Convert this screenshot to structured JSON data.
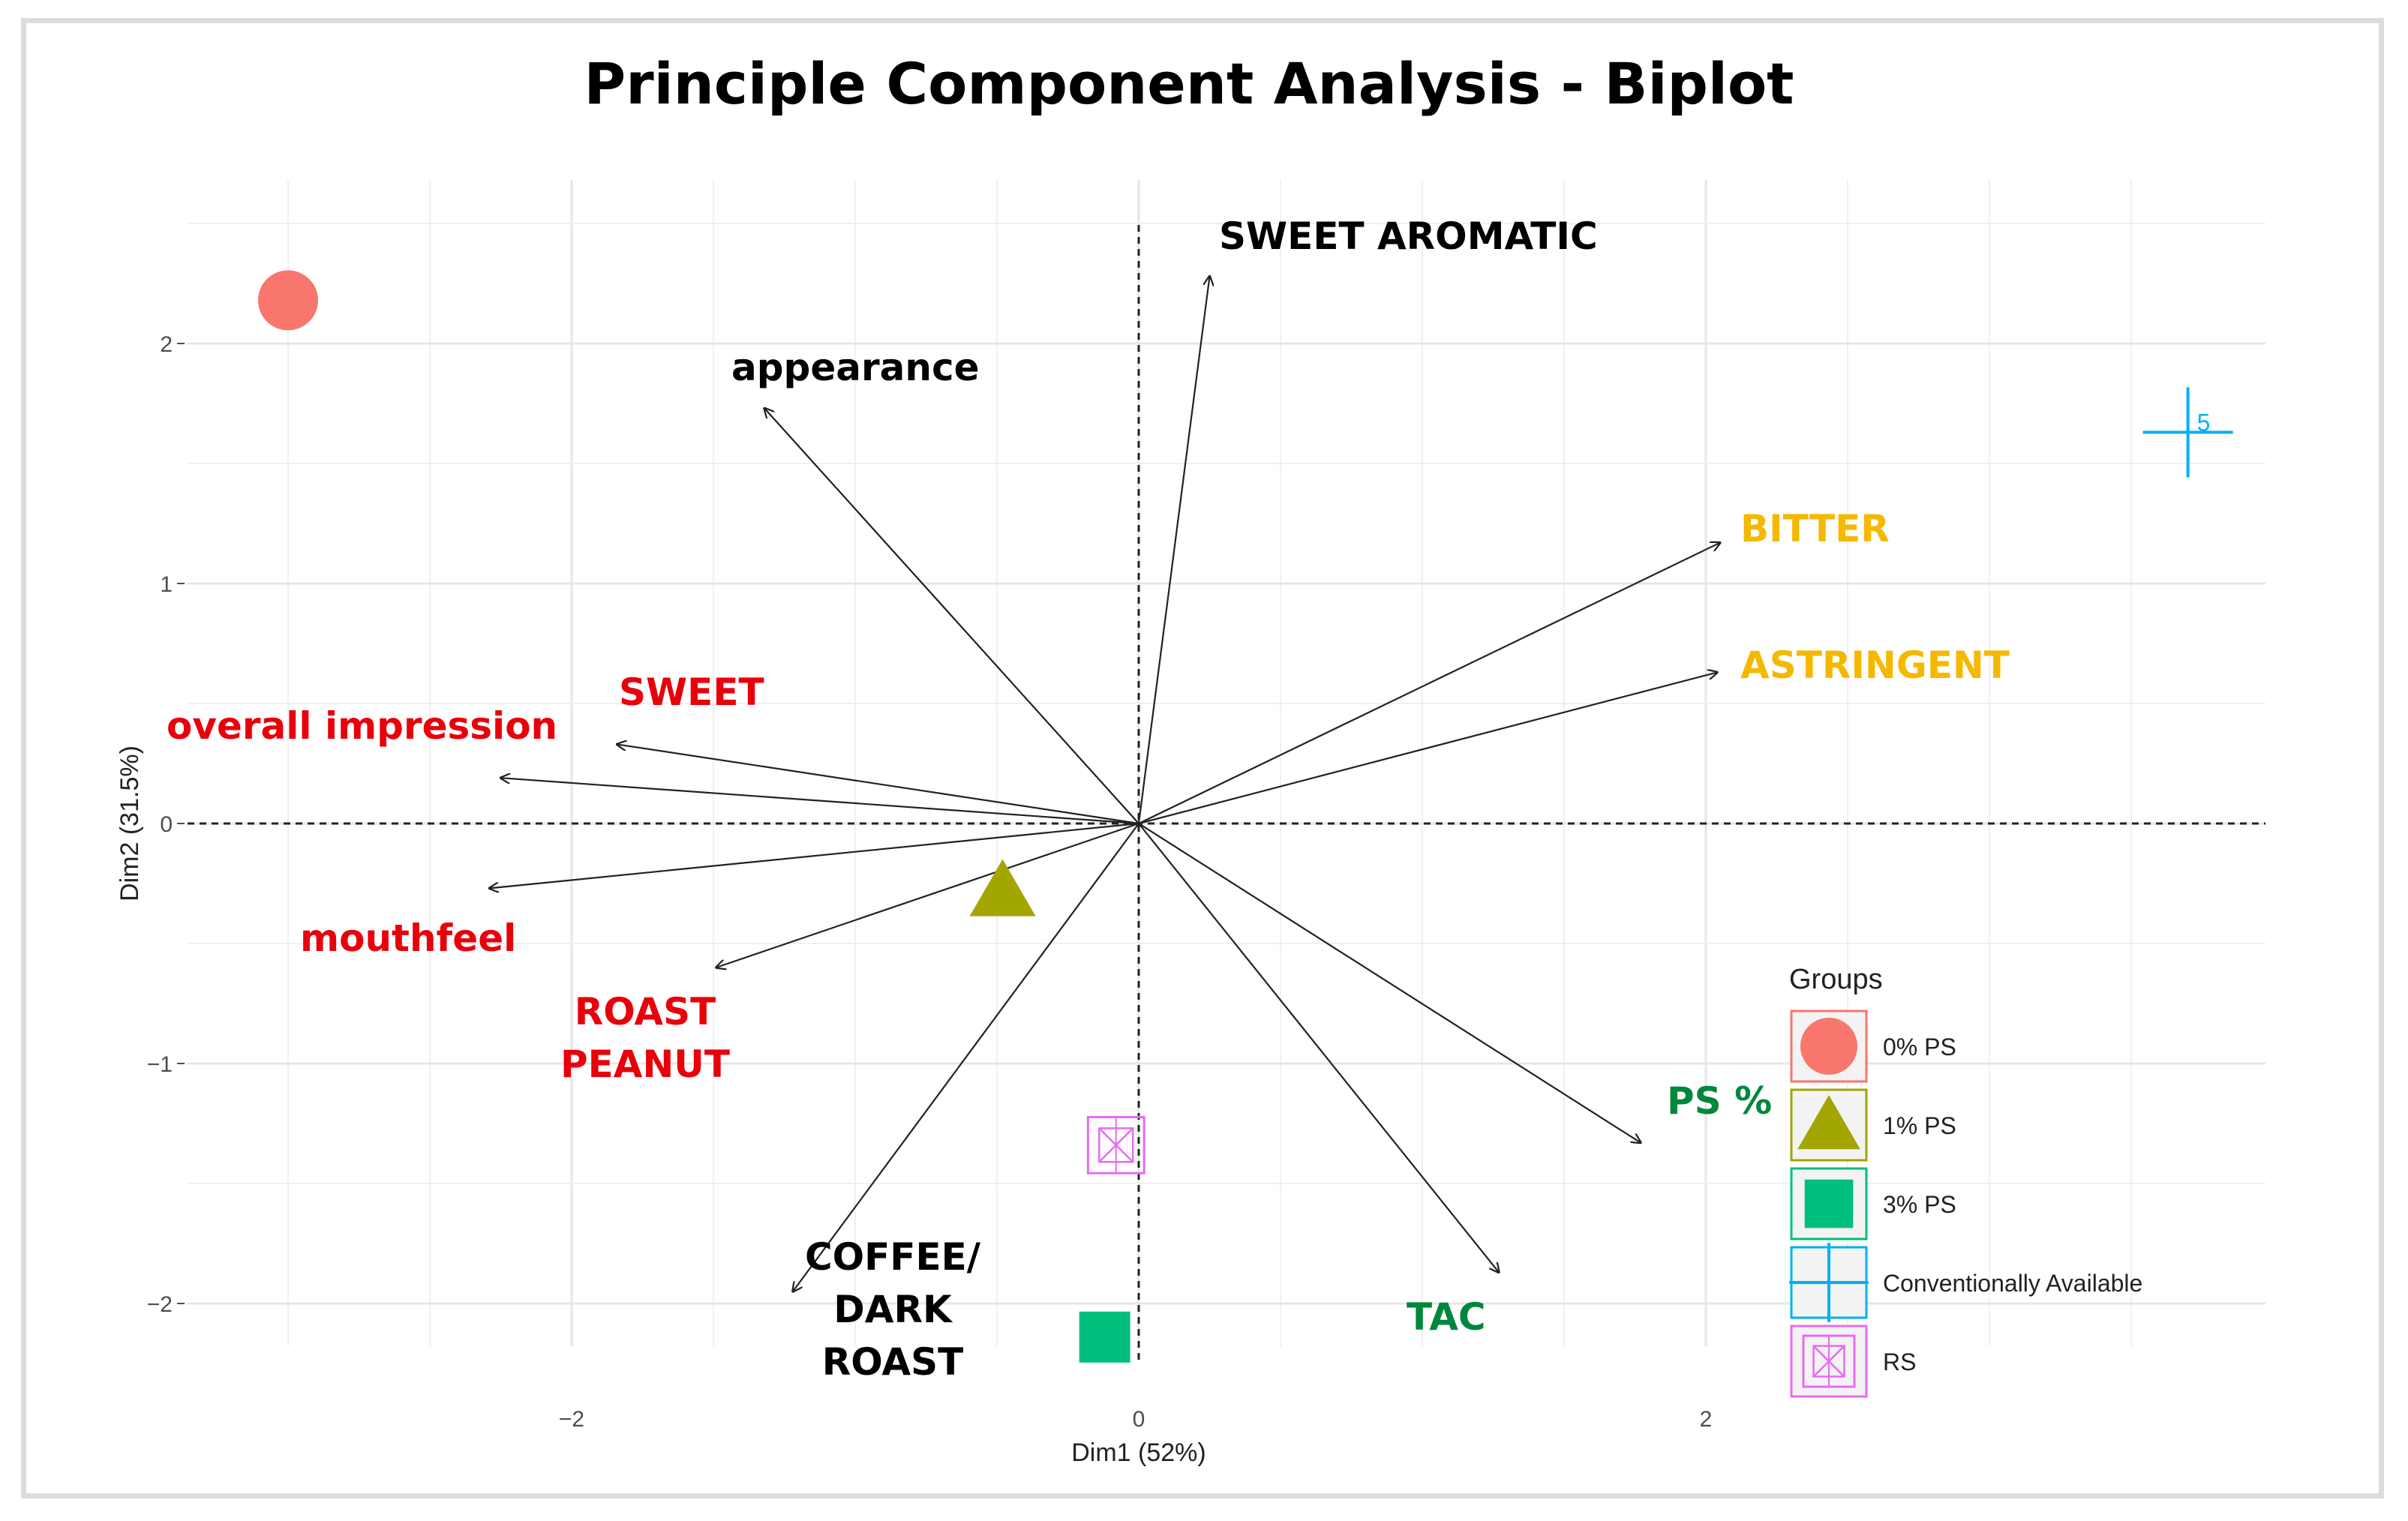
{
  "chart_data": {
    "type": "scatter",
    "subtype": "pca-biplot",
    "title": "Principle Component Analysis - Biplot",
    "xlabel": "Dim1 (52%)",
    "ylabel": "Dim2 (31.5%)",
    "xlim": [
      -3.4,
      4.0
    ],
    "ylim": [
      -2.35,
      2.72
    ],
    "x_ticks": [
      -2,
      0,
      2
    ],
    "y_ticks": [
      -2,
      -1,
      0,
      1,
      2
    ],
    "x_tick_labels": [
      "−2",
      "0",
      "2"
    ],
    "y_tick_labels": [
      "−2",
      "−1",
      "0",
      "1",
      "2"
    ],
    "grid": true,
    "legend": {
      "title": "Groups",
      "position": "bottom-right",
      "entries": [
        {
          "label": "0% PS",
          "shape": "circle",
          "color": "#F8766D"
        },
        {
          "label": "1% PS",
          "shape": "triangle",
          "color": "#A3A500"
        },
        {
          "label": "3% PS",
          "shape": "square",
          "color": "#00BF7D"
        },
        {
          "label": "Conventionally Available",
          "shape": "plus",
          "color": "#00B0F6"
        },
        {
          "label": "RS",
          "shape": "square-cross",
          "color": "#E76BF3"
        }
      ]
    },
    "points": [
      {
        "group": "0% PS",
        "x": -3.0,
        "y": 2.18
      },
      {
        "group": "1% PS",
        "x": -0.48,
        "y": -0.28
      },
      {
        "group": "3% PS",
        "x": -0.12,
        "y": -2.14
      },
      {
        "group": "Conventionally Available",
        "x": 3.7,
        "y": 1.63,
        "label": "5"
      },
      {
        "group": "RS",
        "x": -0.08,
        "y": -1.34
      }
    ],
    "variables": [
      {
        "name": "SWEET AROMATIC",
        "x": 0.25,
        "y": 2.28,
        "color": "#000000"
      },
      {
        "name": "appearance",
        "x": -1.32,
        "y": 1.73,
        "color": "#000000"
      },
      {
        "name": "BITTER",
        "x": 2.05,
        "y": 1.17,
        "color": "#F5B800"
      },
      {
        "name": "ASTRINGENT",
        "x": 2.04,
        "y": 0.63,
        "color": "#F5B800"
      },
      {
        "name": "SWEET",
        "x": -1.84,
        "y": 0.33,
        "color": "#E8000B"
      },
      {
        "name": "overall impression",
        "x": -2.25,
        "y": 0.19,
        "color": "#E8000B"
      },
      {
        "name": "mouthfeel",
        "x": -2.29,
        "y": -0.27,
        "color": "#E8000B"
      },
      {
        "name": "ROAST PEANUT",
        "x": -1.49,
        "y": -0.6,
        "color": "#E8000B",
        "lines": [
          "ROAST",
          "PEANUT"
        ]
      },
      {
        "name": "COFFEE/ DARK ROAST",
        "x": -1.22,
        "y": -1.95,
        "color": "#000000",
        "lines": [
          "COFFEE/",
          "DARK",
          "ROAST"
        ]
      },
      {
        "name": "PS %",
        "x": 1.77,
        "y": -1.33,
        "color": "#00873C"
      },
      {
        "name": "TAC",
        "x": 1.27,
        "y": -1.87,
        "color": "#00873C"
      }
    ]
  }
}
